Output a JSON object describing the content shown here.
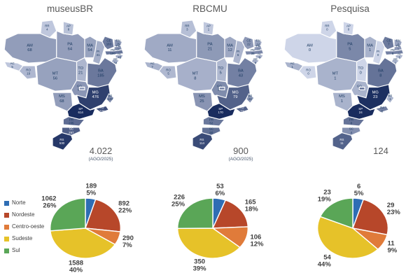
{
  "legend": {
    "items": [
      {
        "label": "Norte",
        "color": "#2e6db4"
      },
      {
        "label": "Nordeste",
        "color": "#b7472a"
      },
      {
        "label": "Centro-oeste",
        "color": "#e07b3a"
      },
      {
        "label": "Sudeste",
        "color": "#e6c229"
      },
      {
        "label": "Sul",
        "color": "#5aa657"
      }
    ]
  },
  "map_palette": {
    "low": "#ced5e8",
    "high": "#192c5e",
    "border": "#ffffff"
  },
  "chart_data": [
    {
      "type": "choropleth",
      "title": "museusBR",
      "total": "4.022",
      "as_of": "(AGO/2025)",
      "region": "Brazil - states",
      "states": {
        "RR": 4,
        "AP": 8,
        "AM": 68,
        "PA": 64,
        "AC": 5,
        "RO": 19,
        "TO": 21,
        "MA": 54,
        "PI": 31,
        "CE": 183,
        "RN": 75,
        "PB": 95,
        "PE": 190,
        "AL": 45,
        "SE": 34,
        "BA": 185,
        "MT": 56,
        "GO": 84,
        "DF": 82,
        "MS": 68,
        "MG": 476,
        "ES": 120,
        "RJ": 378,
        "SP": 614,
        "PR": 235,
        "SC": 297,
        "RS": 530
      }
    },
    {
      "type": "choropleth",
      "title": "RBCMU",
      "total": "900",
      "as_of": "(AGO/2025)",
      "region": "Brazil - states",
      "states": {
        "RR": 3,
        "AP": 1,
        "AM": 11,
        "PA": 21,
        "AC": 7,
        "RO": 5,
        "TO": 5,
        "MA": 12,
        "PI": 6,
        "CE": 22,
        "RN": 12,
        "PB": 18,
        "PE": 35,
        "AL": 9,
        "SE": 8,
        "BA": 43,
        "MT": 8,
        "GO": 32,
        "DF": 41,
        "MS": 25,
        "MG": 79,
        "ES": 24,
        "RJ": 77,
        "SP": 170,
        "PR": 52,
        "SC": 60,
        "RS": 114
      }
    },
    {
      "type": "choropleth",
      "title": "Pesquisa",
      "total": "124",
      "as_of": "",
      "region": "Brazil - states",
      "states": {
        "RR": 0,
        "AP": 0,
        "AM": 0,
        "PA": 5,
        "AC": 1,
        "RO": 0,
        "TO": 0,
        "MA": 1,
        "PI": 0,
        "CE": 7,
        "RN": 2,
        "PB": 3,
        "PE": 6,
        "AL": 1,
        "SE": 1,
        "BA": 8,
        "MT": 1,
        "GO": 1,
        "DF": 8,
        "MS": 1,
        "MG": 23,
        "ES": 1,
        "RJ": 6,
        "SP": 24,
        "PR": 8,
        "SC": 4,
        "RS": 11
      }
    },
    {
      "type": "pie",
      "title": "museusBR by region",
      "categories": [
        "Norte",
        "Nordeste",
        "Centro-oeste",
        "Sudeste",
        "Sul"
      ],
      "values": [
        189,
        892,
        290,
        1588,
        1062
      ],
      "percents": [
        5,
        22,
        7,
        40,
        26
      ],
      "legend_position": "left"
    },
    {
      "type": "pie",
      "title": "RBCMU by region",
      "categories": [
        "Norte",
        "Nordeste",
        "Centro-oeste",
        "Sudeste",
        "Sul"
      ],
      "values": [
        53,
        165,
        106,
        350,
        226
      ],
      "percents": [
        6,
        18,
        12,
        39,
        25
      ],
      "legend_position": "none"
    },
    {
      "type": "pie",
      "title": "Pesquisa by region",
      "categories": [
        "Norte",
        "Nordeste",
        "Centro-oeste",
        "Sudeste",
        "Sul"
      ],
      "values": [
        6,
        29,
        11,
        54,
        23
      ],
      "percents": [
        5,
        23,
        9,
        44,
        19
      ],
      "legend_position": "none"
    }
  ]
}
